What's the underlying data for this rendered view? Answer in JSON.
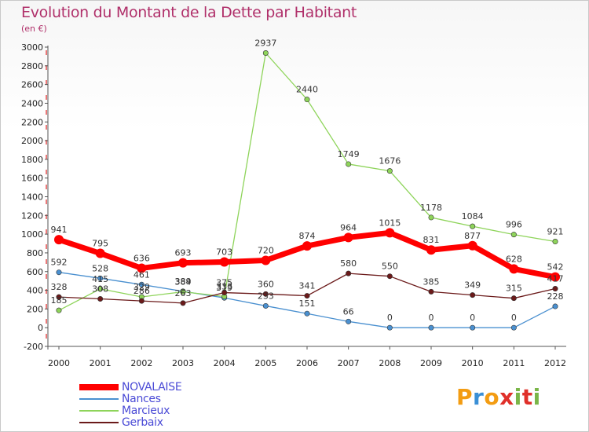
{
  "header": {
    "title": "Evolution du Montant de la Dette par Habitant",
    "subtitle": "(en €)"
  },
  "logo": {
    "text": "Proxiti",
    "colors": [
      "#f39c12",
      "#3a8fd6",
      "#f39c12",
      "#e0302a",
      "#7ab648",
      "#e0302a",
      "#7ab648"
    ]
  },
  "chart_data": {
    "type": "line",
    "x": [
      "2000",
      "2001",
      "2002",
      "2003",
      "2004",
      "2005",
      "2006",
      "2007",
      "2008",
      "2009",
      "2010",
      "2011",
      "2012"
    ],
    "ylim": [
      -200,
      3000
    ],
    "yticks": [
      "-200",
      "0",
      "200",
      "400",
      "600",
      "800",
      "1000",
      "1200",
      "1400",
      "1600",
      "1800",
      "2000",
      "2200",
      "2400",
      "2600",
      "2800",
      "3000"
    ],
    "grid": false,
    "legend": "bottom-left",
    "series": [
      {
        "name": "NOVALAISE",
        "color": "#ff0000",
        "width": 7,
        "values": [
          941,
          795,
          636,
          693,
          703,
          720,
          874,
          964,
          1015,
          831,
          877,
          628,
          542
        ],
        "labels": [
          "941",
          "795",
          "636",
          "693",
          "703",
          "720",
          "874",
          "964",
          "1015",
          "831",
          "877",
          "628",
          "542"
        ]
      },
      {
        "name": "Nances",
        "color": "#4a90d0",
        "width": 1.3,
        "values": [
          592,
          528,
          461,
          389,
          319,
          233,
          151,
          66,
          0,
          0,
          0,
          0,
          228
        ],
        "labels": [
          "592",
          "528",
          "461",
          "389",
          "319",
          "233",
          "151",
          "66",
          "0",
          "0",
          "0",
          "0",
          "228"
        ]
      },
      {
        "name": "Marcieux",
        "color": "#8ed45a",
        "width": 1.3,
        "values": [
          185,
          415,
          329,
          384,
          333,
          2937,
          2440,
          1749,
          1676,
          1178,
          1084,
          996,
          921
        ],
        "labels": [
          "185",
          "415",
          "329",
          "384",
          "333",
          "2937",
          "2440",
          "1749",
          "1676",
          "1178",
          "1084",
          "996",
          "921"
        ]
      },
      {
        "name": "Gerbaix",
        "color": "#6b1a1a",
        "width": 1.3,
        "values": [
          328,
          308,
          286,
          263,
          375,
          360,
          341,
          580,
          550,
          385,
          349,
          315,
          417
        ],
        "labels": [
          "328",
          "308",
          "286",
          "263",
          "375",
          "360",
          "341",
          "580",
          "550",
          "385",
          "349",
          "315",
          "417"
        ]
      }
    ]
  }
}
